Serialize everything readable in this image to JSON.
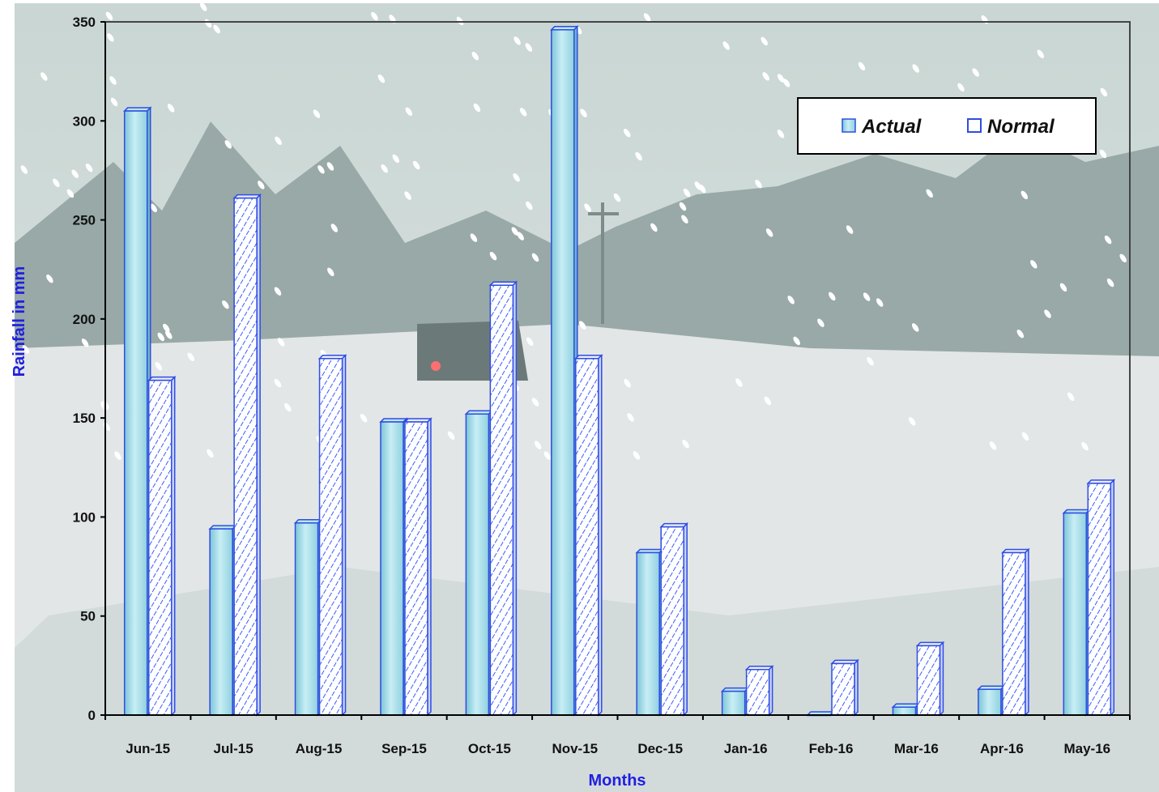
{
  "chart_data": {
    "type": "bar",
    "categories": [
      "Jun-15",
      "Jul-15",
      "Aug-15",
      "Sep-15",
      "Oct-15",
      "Nov-15",
      "Dec-15",
      "Jan-16",
      "Feb-16",
      "Mar-16",
      "Apr-16",
      "May-16"
    ],
    "series": [
      {
        "name": "Actual",
        "values": [
          305,
          94,
          97,
          148,
          152,
          346,
          82,
          12,
          0,
          4,
          13,
          102
        ],
        "color": "#9fd8e6"
      },
      {
        "name": "Normal",
        "values": [
          169,
          261,
          180,
          148,
          217,
          180,
          95,
          23,
          26,
          35,
          82,
          117
        ],
        "color": "#ffffff"
      }
    ],
    "xlabel": "Months",
    "ylabel": "Rainfall in mm",
    "ylim": [
      0,
      350
    ],
    "yticks": [
      "0",
      "50",
      "100",
      "150",
      "200",
      "250",
      "300",
      "350"
    ],
    "legend_position": "top-right",
    "grid": false,
    "bar_edge_color": "#2f4de0",
    "hatch_color": "#3b5bff"
  }
}
